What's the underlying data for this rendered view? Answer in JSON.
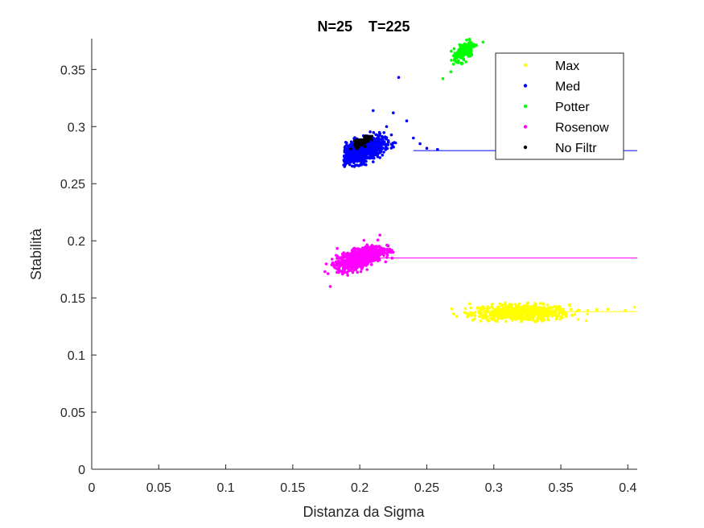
{
  "chart_data": {
    "type": "scatter",
    "title": "N=25    T=225",
    "xlabel": "Distanza da Sigma",
    "ylabel": "Stabilità",
    "xlim": [
      0,
      0.407
    ],
    "ylim": [
      0,
      0.377
    ],
    "xticks": [
      0,
      0.05,
      0.1,
      0.15,
      0.2,
      0.25,
      0.3,
      0.35,
      0.4
    ],
    "xtick_labels": [
      "0",
      "0.05",
      "0.1",
      "0.15",
      "0.2",
      "0.25",
      "0.3",
      "0.35",
      "0.4"
    ],
    "yticks": [
      0,
      0.05,
      0.1,
      0.15,
      0.2,
      0.25,
      0.3,
      0.35
    ],
    "ytick_labels": [
      "0",
      "0.05",
      "0.1",
      "0.15",
      "0.2",
      "0.25",
      "0.3",
      "0.35"
    ],
    "grid": false,
    "legend_position": "top-right",
    "series": [
      {
        "name": "Max",
        "color": "#ffff00",
        "cluster": {
          "x_center": 0.32,
          "x_spread": 0.018,
          "y_center": 0.137,
          "y_spread": 0.0035,
          "count": 700,
          "x_range": [
            0.268,
            0.407
          ],
          "y_range": [
            0.129,
            0.147
          ],
          "correlation": 0.0
        },
        "points": [
          [
            0.27,
            0.136
          ],
          [
            0.282,
            0.145
          ],
          [
            0.29,
            0.138
          ],
          [
            0.37,
            0.139
          ],
          [
            0.385,
            0.14
          ],
          [
            0.398,
            0.139
          ],
          [
            0.405,
            0.142
          ]
        ],
        "line": {
          "y": 0.138,
          "x": [
            0.3,
            0.407
          ]
        }
      },
      {
        "name": "Med",
        "color": "#0000ff",
        "cluster": {
          "x_center": 0.2,
          "x_spread": 0.009,
          "y_center": 0.278,
          "y_spread": 0.006,
          "count": 900,
          "x_range": [
            0.188,
            0.26
          ],
          "y_range": [
            0.265,
            0.3
          ],
          "correlation": 0.55
        },
        "points": [
          [
            0.229,
            0.343
          ],
          [
            0.21,
            0.314
          ],
          [
            0.225,
            0.312
          ],
          [
            0.235,
            0.305
          ],
          [
            0.22,
            0.3
          ],
          [
            0.245,
            0.285
          ],
          [
            0.25,
            0.281
          ],
          [
            0.258,
            0.28
          ],
          [
            0.24,
            0.29
          ],
          [
            0.196,
            0.265
          ],
          [
            0.19,
            0.268
          ]
        ],
        "line": {
          "y": 0.279,
          "x": [
            0.24,
            0.407
          ]
        }
      },
      {
        "name": "Potter",
        "color": "#00ff00",
        "cluster": {
          "x_center": 0.278,
          "x_spread": 0.004,
          "y_center": 0.366,
          "y_spread": 0.005,
          "count": 180,
          "x_range": [
            0.268,
            0.295
          ],
          "y_range": [
            0.353,
            0.377
          ],
          "correlation": 0.6
        },
        "points": [
          [
            0.262,
            0.342
          ],
          [
            0.268,
            0.348
          ],
          [
            0.292,
            0.374
          ]
        ]
      },
      {
        "name": "Rosenow",
        "color": "#ff00ff",
        "cluster": {
          "x_center": 0.2,
          "x_spread": 0.0085,
          "y_center": 0.185,
          "y_spread": 0.005,
          "count": 900,
          "x_range": [
            0.174,
            0.228
          ],
          "y_range": [
            0.162,
            0.206
          ],
          "correlation": 0.6
        },
        "points": [
          [
            0.178,
            0.16
          ],
          [
            0.174,
            0.173
          ],
          [
            0.225,
            0.19
          ],
          [
            0.215,
            0.205
          ]
        ],
        "line": {
          "y": 0.185,
          "x": [
            0.2,
            0.407
          ]
        }
      },
      {
        "name": "No Filtr",
        "color": "#000000",
        "cluster": {
          "x_center": 0.202,
          "x_spread": 0.003,
          "y_center": 0.287,
          "y_spread": 0.0025,
          "count": 90,
          "x_range": [
            0.193,
            0.212
          ],
          "y_range": [
            0.28,
            0.296
          ],
          "correlation": 0.7
        },
        "points": []
      }
    ]
  }
}
